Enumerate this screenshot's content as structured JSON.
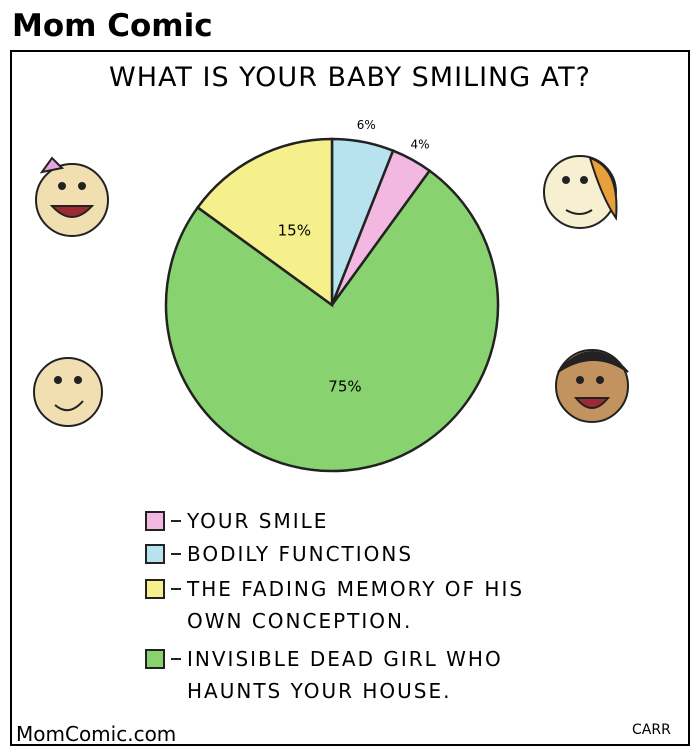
{
  "header": "Mom Comic",
  "chart_data": {
    "type": "pie",
    "title": "WHAT IS YOUR BABY SMILING AT?",
    "categories": [
      "BODILY FUNCTIONS",
      "YOUR SMILE",
      "INVISIBLE DEAD GIRL WHO HAUNTS YOUR HOUSE.",
      "THE FADING MEMORY OF HIS OWN CONCEPTION."
    ],
    "values": [
      6,
      4,
      75,
      15
    ],
    "value_labels": [
      "6%",
      "4%",
      "75%",
      "15%"
    ],
    "colors": [
      "#b8e2ee",
      "#f2b8e2",
      "#88d36f",
      "#f6f08c"
    ]
  },
  "footer": {
    "site": "MomComic.com",
    "signature": "CARR"
  }
}
